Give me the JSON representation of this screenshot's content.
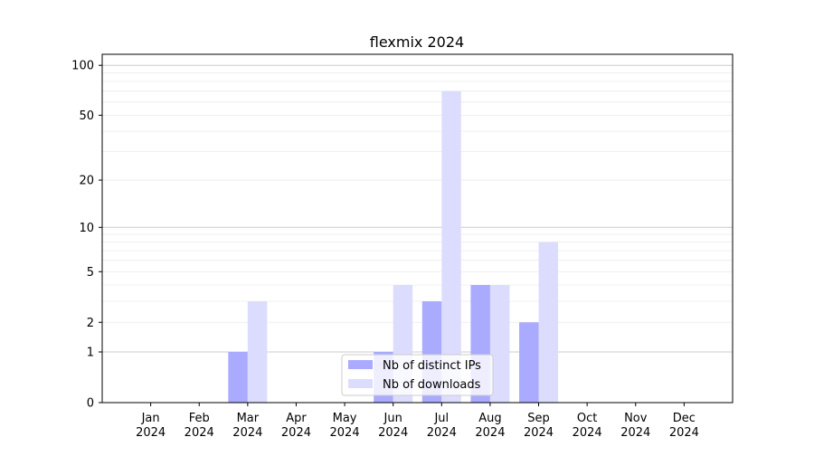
{
  "chart_data": {
    "type": "bar",
    "title": "flexmix 2024",
    "xlabel": "",
    "ylabel": "",
    "categories": [
      "Jan\n2024",
      "Feb\n2024",
      "Mar\n2024",
      "Apr\n2024",
      "May\n2024",
      "Jun\n2024",
      "Jul\n2024",
      "Aug\n2024",
      "Sep\n2024",
      "Oct\n2024",
      "Nov\n2024",
      "Dec\n2024"
    ],
    "series": [
      {
        "name": "Nb of distinct IPs",
        "color": "#aaaaff",
        "values": [
          0,
          0,
          1,
          0,
          0,
          1,
          3,
          4,
          2,
          0,
          0,
          0
        ]
      },
      {
        "name": "Nb of downloads",
        "color": "#dcdcff",
        "values": [
          0,
          0,
          3,
          0,
          0,
          4,
          70,
          4,
          8,
          0,
          0,
          0
        ]
      }
    ],
    "yscale": "log(1+y)",
    "ylim": [
      0,
      110
    ],
    "yticks": [
      0,
      1,
      2,
      5,
      10,
      20,
      50,
      100
    ],
    "ytick_labels": [
      "0",
      "1",
      "2",
      "5",
      "10",
      "20",
      "50",
      "100"
    ],
    "grid": true,
    "legend": "lower-center"
  }
}
